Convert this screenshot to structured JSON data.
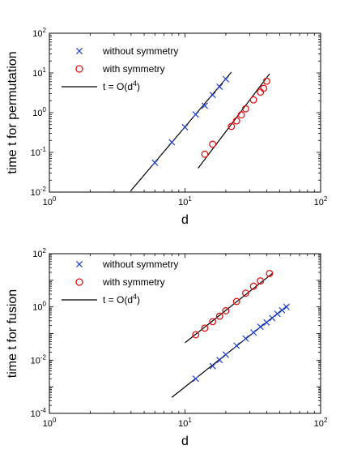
{
  "chart_data": [
    {
      "type": "scatter",
      "title": "",
      "xlabel": "d",
      "ylabel": "time t for permutation",
      "xscale": "log",
      "yscale": "log",
      "xlim": [
        1,
        100
      ],
      "ylim": [
        0.01,
        100
      ],
      "x_ticks": [
        {
          "value": 1,
          "base": "10",
          "exp": "0"
        },
        {
          "value": 10,
          "base": "10",
          "exp": "1"
        },
        {
          "value": 100,
          "base": "10",
          "exp": "2"
        }
      ],
      "y_ticks": [
        {
          "value": 0.01,
          "base": "10",
          "exp": "-2"
        },
        {
          "value": 0.1,
          "base": "10",
          "exp": "-1"
        },
        {
          "value": 1,
          "base": "10",
          "exp": "0"
        },
        {
          "value": 10,
          "base": "10",
          "exp": "1"
        },
        {
          "value": 100,
          "base": "10",
          "exp": "2"
        }
      ],
      "grid": false,
      "legend_position": "top-left",
      "legend": [
        {
          "label": "without symmetry",
          "marker": "x",
          "color": "#1f3fd6"
        },
        {
          "label": "with symmetry",
          "marker": "o",
          "color": "#e01010"
        },
        {
          "label_main": "t = O(d",
          "label_sup": "4",
          "label_end": ")",
          "marker": "line",
          "color": "#000000"
        }
      ],
      "series": [
        {
          "name": "without symmetry",
          "marker": "x",
          "color": "#1f3fd6",
          "x": [
            6,
            8,
            10,
            12,
            14,
            16,
            18,
            20
          ],
          "y": [
            0.055,
            0.18,
            0.43,
            0.9,
            1.5,
            2.8,
            4.5,
            7.0
          ]
        },
        {
          "name": "with symmetry",
          "marker": "o",
          "color": "#e01010",
          "x": [
            14,
            16,
            22,
            24,
            26,
            28,
            32,
            36,
            38,
            40
          ],
          "y": [
            0.09,
            0.16,
            0.45,
            0.62,
            0.88,
            1.25,
            2.1,
            3.3,
            4.1,
            6.2
          ]
        }
      ],
      "fit_lines": [
        {
          "x": [
            4,
            22
          ],
          "y": [
            0.011,
            10.5
          ]
        },
        {
          "x": [
            12.5,
            42
          ],
          "y": [
            0.04,
            9.5
          ]
        }
      ]
    },
    {
      "type": "scatter",
      "title": "",
      "xlabel": "d",
      "ylabel": "time t for fusion",
      "xscale": "log",
      "yscale": "log",
      "xlim": [
        1,
        100
      ],
      "ylim": [
        0.0001,
        100
      ],
      "x_ticks": [
        {
          "value": 1,
          "base": "10",
          "exp": "0"
        },
        {
          "value": 10,
          "base": "10",
          "exp": "1"
        },
        {
          "value": 100,
          "base": "10",
          "exp": "2"
        }
      ],
      "y_ticks": [
        {
          "value": 0.0001,
          "base": "10",
          "exp": "-4"
        },
        {
          "value": 0.01,
          "base": "10",
          "exp": "-2"
        },
        {
          "value": 1,
          "base": "10",
          "exp": "0"
        },
        {
          "value": 100,
          "base": "10",
          "exp": "2"
        }
      ],
      "grid": false,
      "legend_position": "top-left",
      "legend": [
        {
          "label": "without symmetry",
          "marker": "x",
          "color": "#1f3fd6"
        },
        {
          "label": "with symmetry",
          "marker": "o",
          "color": "#e01010"
        },
        {
          "label_main": "t = O(d",
          "label_sup": "4",
          "label_end": ")",
          "marker": "line",
          "color": "#000000"
        }
      ],
      "series": [
        {
          "name": "without symmetry",
          "marker": "x",
          "color": "#1f3fd6",
          "x": [
            12,
            16,
            18,
            20,
            24,
            28,
            32,
            36,
            40,
            44,
            48,
            52,
            56
          ],
          "y": [
            0.002,
            0.006,
            0.01,
            0.016,
            0.035,
            0.065,
            0.11,
            0.18,
            0.26,
            0.38,
            0.55,
            0.75,
            1.0
          ]
        },
        {
          "name": "with symmetry",
          "marker": "o",
          "color": "#e01010",
          "x": [
            12,
            14,
            16,
            18,
            20,
            24,
            28,
            32,
            36,
            42
          ],
          "y": [
            0.09,
            0.16,
            0.28,
            0.45,
            0.72,
            1.6,
            3.3,
            6.0,
            9.5,
            18.0
          ]
        }
      ],
      "fit_lines": [
        {
          "x": [
            8,
            58
          ],
          "y": [
            0.0004,
            1.2
          ]
        },
        {
          "x": [
            10,
            44
          ],
          "y": [
            0.045,
            18.0
          ]
        }
      ]
    }
  ]
}
